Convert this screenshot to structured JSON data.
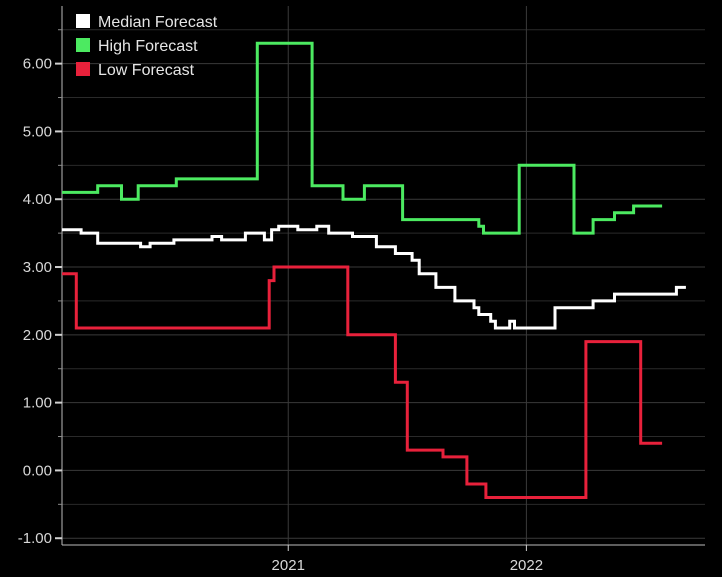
{
  "chart_data": {
    "type": "line",
    "title": "",
    "xlabel": "",
    "ylabel": "",
    "ylim": [
      -1.1,
      6.85
    ],
    "xlim": [
      2020.05,
      2022.75
    ],
    "grid": true,
    "legend_position": "top-left",
    "y_ticks": [
      "6.00",
      "5.00",
      "4.00",
      "3.00",
      "2.00",
      "1.00",
      "0.00",
      "-1.00"
    ],
    "y_tick_values": [
      6,
      5,
      4,
      3,
      2,
      1,
      0,
      -1
    ],
    "x_ticks": [
      "2021",
      "2022"
    ],
    "x_tick_values": [
      2021.0,
      2022.0
    ],
    "series": [
      {
        "name": "Median Forecast",
        "color": "#ffffff",
        "points": [
          [
            2020.05,
            3.55
          ],
          [
            2020.13,
            3.55
          ],
          [
            2020.13,
            3.5
          ],
          [
            2020.2,
            3.5
          ],
          [
            2020.2,
            3.35
          ],
          [
            2020.38,
            3.35
          ],
          [
            2020.38,
            3.3
          ],
          [
            2020.42,
            3.3
          ],
          [
            2020.42,
            3.35
          ],
          [
            2020.52,
            3.35
          ],
          [
            2020.52,
            3.4
          ],
          [
            2020.68,
            3.4
          ],
          [
            2020.68,
            3.45
          ],
          [
            2020.72,
            3.45
          ],
          [
            2020.72,
            3.4
          ],
          [
            2020.82,
            3.4
          ],
          [
            2020.82,
            3.5
          ],
          [
            2020.9,
            3.5
          ],
          [
            2020.9,
            3.4
          ],
          [
            2020.93,
            3.4
          ],
          [
            2020.93,
            3.55
          ],
          [
            2020.96,
            3.55
          ],
          [
            2020.96,
            3.6
          ],
          [
            2021.04,
            3.6
          ],
          [
            2021.04,
            3.55
          ],
          [
            2021.12,
            3.55
          ],
          [
            2021.12,
            3.6
          ],
          [
            2021.17,
            3.6
          ],
          [
            2021.17,
            3.5
          ],
          [
            2021.27,
            3.5
          ],
          [
            2021.27,
            3.45
          ],
          [
            2021.37,
            3.45
          ],
          [
            2021.37,
            3.3
          ],
          [
            2021.45,
            3.3
          ],
          [
            2021.45,
            3.2
          ],
          [
            2021.52,
            3.2
          ],
          [
            2021.52,
            3.1
          ],
          [
            2021.55,
            3.1
          ],
          [
            2021.55,
            2.9
          ],
          [
            2021.62,
            2.9
          ],
          [
            2021.62,
            2.7
          ],
          [
            2021.7,
            2.7
          ],
          [
            2021.7,
            2.5
          ],
          [
            2021.78,
            2.5
          ],
          [
            2021.78,
            2.4
          ],
          [
            2021.8,
            2.4
          ],
          [
            2021.8,
            2.3
          ],
          [
            2021.85,
            2.3
          ],
          [
            2021.85,
            2.2
          ],
          [
            2021.87,
            2.2
          ],
          [
            2021.87,
            2.1
          ],
          [
            2021.93,
            2.1
          ],
          [
            2021.93,
            2.2
          ],
          [
            2021.95,
            2.2
          ],
          [
            2021.95,
            2.1
          ],
          [
            2022.12,
            2.1
          ],
          [
            2022.12,
            2.4
          ],
          [
            2022.28,
            2.4
          ],
          [
            2022.28,
            2.5
          ],
          [
            2022.37,
            2.5
          ],
          [
            2022.37,
            2.6
          ],
          [
            2022.63,
            2.6
          ],
          [
            2022.63,
            2.7
          ],
          [
            2022.67,
            2.7
          ]
        ]
      },
      {
        "name": "High Forecast",
        "color": "#4cea61",
        "points": [
          [
            2020.05,
            4.1
          ],
          [
            2020.2,
            4.1
          ],
          [
            2020.2,
            4.2
          ],
          [
            2020.3,
            4.2
          ],
          [
            2020.3,
            4.0
          ],
          [
            2020.37,
            4.0
          ],
          [
            2020.37,
            4.2
          ],
          [
            2020.53,
            4.2
          ],
          [
            2020.53,
            4.3
          ],
          [
            2020.87,
            4.3
          ],
          [
            2020.87,
            5.6
          ],
          [
            2020.87,
            6.3
          ],
          [
            2021.1,
            6.3
          ],
          [
            2021.1,
            4.2
          ],
          [
            2021.23,
            4.2
          ],
          [
            2021.23,
            4.0
          ],
          [
            2021.32,
            4.0
          ],
          [
            2021.32,
            4.2
          ],
          [
            2021.48,
            4.2
          ],
          [
            2021.48,
            3.7
          ],
          [
            2021.8,
            3.7
          ],
          [
            2021.8,
            3.6
          ],
          [
            2021.82,
            3.6
          ],
          [
            2021.82,
            3.5
          ],
          [
            2021.97,
            3.5
          ],
          [
            2021.97,
            4.5
          ],
          [
            2022.2,
            4.5
          ],
          [
            2022.2,
            3.5
          ],
          [
            2022.28,
            3.5
          ],
          [
            2022.28,
            3.7
          ],
          [
            2022.37,
            3.7
          ],
          [
            2022.37,
            3.8
          ],
          [
            2022.45,
            3.8
          ],
          [
            2022.45,
            3.9
          ],
          [
            2022.57,
            3.9
          ]
        ]
      },
      {
        "name": "Low Forecast",
        "color": "#e8213b",
        "points": [
          [
            2020.05,
            2.9
          ],
          [
            2020.11,
            2.9
          ],
          [
            2020.11,
            2.1
          ],
          [
            2020.92,
            2.1
          ],
          [
            2020.92,
            2.8
          ],
          [
            2020.94,
            2.8
          ],
          [
            2020.94,
            3.0
          ],
          [
            2021.25,
            3.0
          ],
          [
            2021.25,
            2.0
          ],
          [
            2021.45,
            2.0
          ],
          [
            2021.45,
            1.3
          ],
          [
            2021.5,
            1.3
          ],
          [
            2021.5,
            0.3
          ],
          [
            2021.65,
            0.3
          ],
          [
            2021.65,
            0.2
          ],
          [
            2021.75,
            0.2
          ],
          [
            2021.75,
            -0.2
          ],
          [
            2021.83,
            -0.2
          ],
          [
            2021.83,
            -0.4
          ],
          [
            2022.25,
            -0.4
          ],
          [
            2022.25,
            1.9
          ],
          [
            2022.48,
            1.9
          ],
          [
            2022.48,
            0.4
          ],
          [
            2022.57,
            0.4
          ]
        ]
      }
    ]
  }
}
